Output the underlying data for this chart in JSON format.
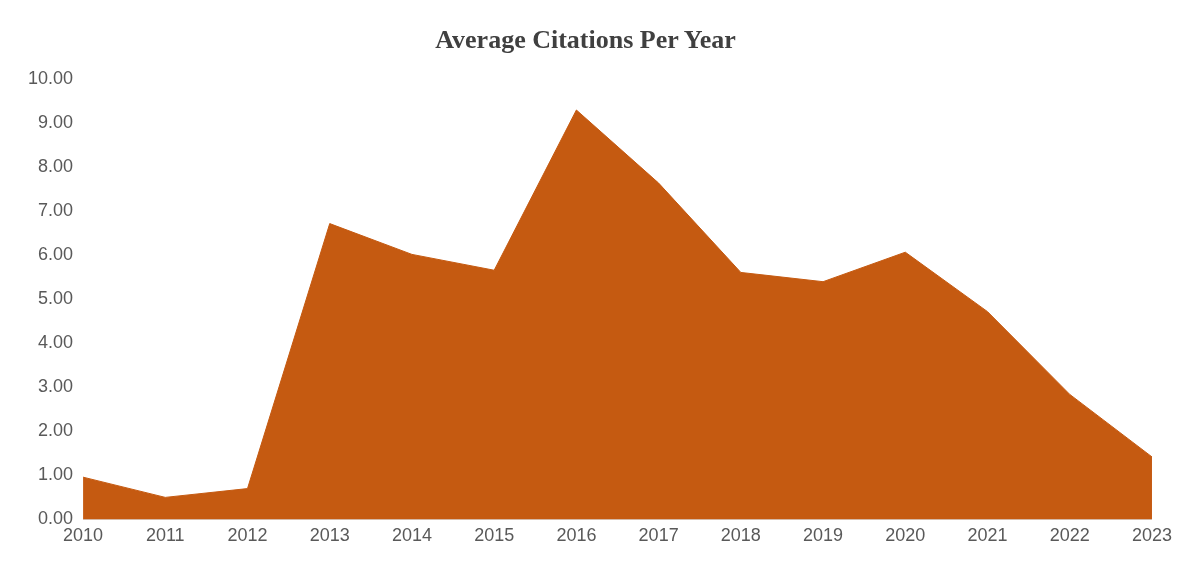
{
  "chart_data": {
    "type": "area",
    "title": "Average Citations Per Year",
    "categories": [
      "2010",
      "2011",
      "2012",
      "2013",
      "2014",
      "2015",
      "2016",
      "2017",
      "2018",
      "2019",
      "2020",
      "2021",
      "2022",
      "2023"
    ],
    "values": [
      0.96,
      0.5,
      0.7,
      6.72,
      6.02,
      5.66,
      9.3,
      7.64,
      5.61,
      5.4,
      6.07,
      4.72,
      2.84,
      1.42
    ],
    "color": "#c55a11",
    "ylim": [
      0,
      10
    ],
    "yticks": [
      {
        "value": 0,
        "label": "0.00"
      },
      {
        "value": 1,
        "label": "1.00"
      },
      {
        "value": 2,
        "label": "2.00"
      },
      {
        "value": 3,
        "label": "3.00"
      },
      {
        "value": 4,
        "label": "4.00"
      },
      {
        "value": 5,
        "label": "5.00"
      },
      {
        "value": 6,
        "label": "6.00"
      },
      {
        "value": 7,
        "label": "7.00"
      },
      {
        "value": 8,
        "label": "8.00"
      },
      {
        "value": 9,
        "label": "9.00"
      },
      {
        "value": 10,
        "label": "10.00"
      }
    ],
    "grid": false,
    "legend": false
  }
}
